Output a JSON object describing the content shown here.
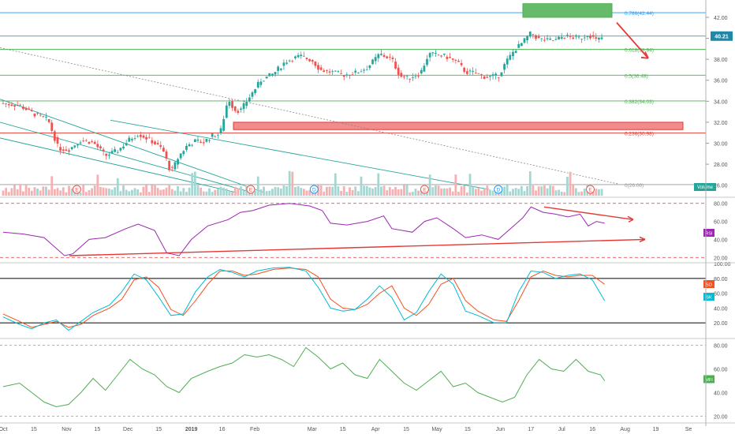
{
  "chart_data": [
    {
      "type": "candlestick",
      "panel": "price",
      "y_axis": {
        "min": 25,
        "max": 43.5,
        "ticks": [
          26,
          28,
          30,
          32,
          34,
          36,
          38,
          40,
          42
        ]
      },
      "x_axis": {
        "range_days": [
          0,
          345
        ],
        "tick_labels": [
          {
            "t": 0,
            "label": "Oct"
          },
          {
            "t": 15,
            "label": "15"
          },
          {
            "t": 31,
            "label": "Nov"
          },
          {
            "t": 46,
            "label": "15"
          },
          {
            "t": 61,
            "label": "Dec"
          },
          {
            "t": 76,
            "label": "15"
          },
          {
            "t": 92,
            "label": "2019"
          },
          {
            "t": 107,
            "label": "16"
          },
          {
            "t": 123,
            "label": "Feb"
          },
          {
            "t": 151,
            "label": "Mar"
          },
          {
            "t": 166,
            "label": "15"
          },
          {
            "t": 182,
            "label": "Apr"
          },
          {
            "t": 197,
            "label": "15"
          },
          {
            "t": 212,
            "label": "May"
          },
          {
            "t": 227,
            "label": "15"
          },
          {
            "t": 243,
            "label": "Jun"
          },
          {
            "t": 258,
            "label": "17"
          },
          {
            "t": 273,
            "label": "Jul"
          },
          {
            "t": 288,
            "label": "16"
          },
          {
            "t": 304,
            "label": "Aug"
          },
          {
            "t": 319,
            "label": "19"
          },
          {
            "t": 335,
            "label": "Se"
          }
        ]
      },
      "price_path": [
        [
          0,
          33.8
        ],
        [
          8,
          33.6
        ],
        [
          15,
          32.8
        ],
        [
          22,
          32.2
        ],
        [
          27,
          29.5
        ],
        [
          32,
          29.4
        ],
        [
          38,
          30.3
        ],
        [
          44,
          30.1
        ],
        [
          50,
          28.8
        ],
        [
          56,
          29.3
        ],
        [
          62,
          30.4
        ],
        [
          66,
          30.9
        ],
        [
          72,
          30.3
        ],
        [
          78,
          29.4
        ],
        [
          82,
          27.2
        ],
        [
          86,
          28.8
        ],
        [
          90,
          29.8
        ],
        [
          94,
          30.2
        ],
        [
          98,
          30.1
        ],
        [
          102,
          30.7
        ],
        [
          106,
          30.9
        ],
        [
          110,
          34.3
        ],
        [
          113,
          33.2
        ],
        [
          116,
          33.1
        ],
        [
          120,
          34.3
        ],
        [
          126,
          36.0
        ],
        [
          132,
          36.6
        ],
        [
          138,
          37.8
        ],
        [
          145,
          38.3
        ],
        [
          151,
          37.9
        ],
        [
          155,
          37.0
        ],
        [
          160,
          36.8
        ],
        [
          166,
          36.5
        ],
        [
          172,
          36.7
        ],
        [
          178,
          37.2
        ],
        [
          184,
          38.5
        ],
        [
          190,
          38.0
        ],
        [
          194,
          36.4
        ],
        [
          198,
          36.2
        ],
        [
          204,
          36.7
        ],
        [
          208,
          38.5
        ],
        [
          212,
          38.4
        ],
        [
          216,
          38.3
        ],
        [
          222,
          37.7
        ],
        [
          226,
          36.8
        ],
        [
          230,
          36.7
        ],
        [
          236,
          36.3
        ],
        [
          242,
          36.4
        ],
        [
          246,
          37.8
        ],
        [
          250,
          38.9
        ],
        [
          254,
          39.6
        ],
        [
          258,
          40.5
        ],
        [
          262,
          39.9
        ],
        [
          266,
          39.8
        ],
        [
          270,
          39.8
        ],
        [
          274,
          40.2
        ],
        [
          278,
          40.1
        ],
        [
          282,
          40.0
        ],
        [
          286,
          40.4
        ],
        [
          290,
          39.8
        ],
        [
          294,
          40.2
        ]
      ],
      "levels": [
        {
          "label": "0.786(42.44)",
          "value": 42.44
        },
        {
          "label": "0.618(38.94)",
          "value": 38.94
        },
        {
          "label": "0.5(36.48)",
          "value": 36.48
        },
        {
          "label": "0.382(34.03)",
          "value": 34.03
        },
        {
          "label": "0.236(30.98)",
          "value": 30.98
        },
        {
          "label": "0(26.06)",
          "value": 26.06
        }
      ],
      "last_price": "40.21",
      "volume_label": "Volume",
      "event_markers": [
        {
          "t": 36,
          "label": "E"
        },
        {
          "t": 121,
          "label": "E"
        },
        {
          "t": 152,
          "label": "D"
        },
        {
          "t": 206,
          "label": "E"
        },
        {
          "t": 242,
          "label": "D"
        },
        {
          "t": 287,
          "label": "E"
        }
      ]
    },
    {
      "type": "line",
      "panel": "rsi",
      "name": "RSI",
      "y_axis": {
        "min": 15,
        "max": 85,
        "ticks": [
          20,
          40,
          60,
          80
        ]
      },
      "series": [
        {
          "name": "RSI",
          "color": "#9c27b0",
          "points": [
            [
              0,
              48
            ],
            [
              10,
              46
            ],
            [
              20,
              42
            ],
            [
              30,
              22
            ],
            [
              34,
              24
            ],
            [
              42,
              40
            ],
            [
              50,
              42
            ],
            [
              60,
              52
            ],
            [
              66,
              57
            ],
            [
              74,
              50
            ],
            [
              80,
              25
            ],
            [
              86,
              22
            ],
            [
              92,
              40
            ],
            [
              100,
              55
            ],
            [
              110,
              62
            ],
            [
              116,
              70
            ],
            [
              122,
              72
            ],
            [
              130,
              78
            ],
            [
              140,
              80
            ],
            [
              150,
              77
            ],
            [
              156,
              72
            ],
            [
              160,
              58
            ],
            [
              168,
              56
            ],
            [
              178,
              60
            ],
            [
              186,
              66
            ],
            [
              190,
              52
            ],
            [
              200,
              48
            ],
            [
              206,
              60
            ],
            [
              212,
              64
            ],
            [
              220,
              52
            ],
            [
              226,
              42
            ],
            [
              234,
              45
            ],
            [
              242,
              40
            ],
            [
              248,
              52
            ],
            [
              254,
              64
            ],
            [
              258,
              76
            ],
            [
              264,
              70
            ],
            [
              270,
              68
            ],
            [
              276,
              65
            ],
            [
              282,
              68
            ],
            [
              286,
              55
            ],
            [
              290,
              60
            ],
            [
              294,
              58
            ]
          ]
        }
      ]
    },
    {
      "type": "line",
      "panel": "stochastic",
      "y_axis": {
        "min": 0,
        "max": 100,
        "ticks": [
          20,
          40,
          60,
          80,
          100
        ]
      },
      "series": [
        {
          "name": "SD",
          "color": "#f4511e",
          "points": [
            [
              0,
              32
            ],
            [
              8,
              22
            ],
            [
              14,
              14
            ],
            [
              20,
              18
            ],
            [
              26,
              22
            ],
            [
              32,
              14
            ],
            [
              38,
              18
            ],
            [
              44,
              30
            ],
            [
              52,
              40
            ],
            [
              58,
              52
            ],
            [
              64,
              78
            ],
            [
              70,
              82
            ],
            [
              76,
              68
            ],
            [
              82,
              38
            ],
            [
              88,
              30
            ],
            [
              94,
              50
            ],
            [
              100,
              72
            ],
            [
              106,
              90
            ],
            [
              112,
              90
            ],
            [
              118,
              84
            ],
            [
              124,
              86
            ],
            [
              132,
              92
            ],
            [
              140,
              94
            ],
            [
              148,
              92
            ],
            [
              154,
              82
            ],
            [
              160,
              52
            ],
            [
              166,
              40
            ],
            [
              172,
              38
            ],
            [
              178,
              45
            ],
            [
              184,
              60
            ],
            [
              190,
              70
            ],
            [
              196,
              40
            ],
            [
              202,
              30
            ],
            [
              208,
              45
            ],
            [
              214,
              72
            ],
            [
              220,
              80
            ],
            [
              226,
              50
            ],
            [
              232,
              36
            ],
            [
              240,
              24
            ],
            [
              246,
              22
            ],
            [
              252,
              50
            ],
            [
              258,
              82
            ],
            [
              264,
              90
            ],
            [
              270,
              84
            ],
            [
              276,
              82
            ],
            [
              282,
              84
            ],
            [
              288,
              84
            ],
            [
              294,
              72
            ]
          ]
        },
        {
          "name": "SK",
          "color": "#00bcd4",
          "points": [
            [
              0,
              28
            ],
            [
              8,
              18
            ],
            [
              14,
              12
            ],
            [
              20,
              20
            ],
            [
              26,
              24
            ],
            [
              32,
              10
            ],
            [
              38,
              22
            ],
            [
              44,
              34
            ],
            [
              52,
              44
            ],
            [
              58,
              62
            ],
            [
              64,
              86
            ],
            [
              70,
              78
            ],
            [
              76,
              55
            ],
            [
              82,
              30
            ],
            [
              88,
              32
            ],
            [
              94,
              62
            ],
            [
              100,
              82
            ],
            [
              106,
              92
            ],
            [
              112,
              88
            ],
            [
              118,
              82
            ],
            [
              124,
              90
            ],
            [
              132,
              94
            ],
            [
              140,
              95
            ],
            [
              148,
              90
            ],
            [
              154,
              68
            ],
            [
              160,
              40
            ],
            [
              166,
              36
            ],
            [
              172,
              38
            ],
            [
              178,
              52
            ],
            [
              184,
              70
            ],
            [
              190,
              54
            ],
            [
              196,
              24
            ],
            [
              202,
              34
            ],
            [
              208,
              62
            ],
            [
              214,
              86
            ],
            [
              220,
              72
            ],
            [
              226,
              36
            ],
            [
              232,
              30
            ],
            [
              240,
              20
            ],
            [
              246,
              20
            ],
            [
              252,
              62
            ],
            [
              258,
              90
            ],
            [
              264,
              88
            ],
            [
              270,
              80
            ],
            [
              276,
              84
            ],
            [
              282,
              86
            ],
            [
              288,
              78
            ],
            [
              294,
              50
            ]
          ]
        }
      ]
    },
    {
      "type": "line",
      "panel": "mfi",
      "name": "MFI",
      "y_axis": {
        "min": 15,
        "max": 85,
        "ticks": [
          20,
          40,
          60,
          80
        ]
      },
      "series": [
        {
          "name": "MFI",
          "color": "#4caf50",
          "points": [
            [
              0,
              45
            ],
            [
              8,
              48
            ],
            [
              14,
              40
            ],
            [
              20,
              32
            ],
            [
              26,
              28
            ],
            [
              32,
              30
            ],
            [
              38,
              40
            ],
            [
              44,
              52
            ],
            [
              50,
              42
            ],
            [
              56,
              55
            ],
            [
              62,
              68
            ],
            [
              68,
              60
            ],
            [
              74,
              55
            ],
            [
              80,
              45
            ],
            [
              86,
              40
            ],
            [
              92,
              52
            ],
            [
              100,
              58
            ],
            [
              106,
              62
            ],
            [
              112,
              65
            ],
            [
              118,
              72
            ],
            [
              124,
              70
            ],
            [
              130,
              72
            ],
            [
              136,
              68
            ],
            [
              142,
              62
            ],
            [
              148,
              78
            ],
            [
              154,
              70
            ],
            [
              160,
              60
            ],
            [
              166,
              65
            ],
            [
              172,
              55
            ],
            [
              178,
              52
            ],
            [
              184,
              68
            ],
            [
              190,
              58
            ],
            [
              196,
              48
            ],
            [
              202,
              42
            ],
            [
              208,
              50
            ],
            [
              214,
              58
            ],
            [
              220,
              45
            ],
            [
              226,
              48
            ],
            [
              232,
              40
            ],
            [
              238,
              36
            ],
            [
              244,
              32
            ],
            [
              250,
              36
            ],
            [
              256,
              55
            ],
            [
              262,
              68
            ],
            [
              268,
              60
            ],
            [
              274,
              58
            ],
            [
              280,
              68
            ],
            [
              286,
              58
            ],
            [
              292,
              55
            ],
            [
              294,
              50
            ]
          ]
        }
      ]
    }
  ],
  "labels": {
    "sd_badge": "SD",
    "sk_badge": "SK",
    "mfi_badge": "MFI",
    "rsi_badge": "RSI"
  },
  "colors": {
    "up": "#26a69a",
    "down": "#ef5350",
    "fib_line": "#4caf50",
    "zone_green": "#66bb6a",
    "zone_red": "#f28b8b",
    "annotation_red": "#e53935",
    "last_price_bg": "#1e88a8"
  }
}
